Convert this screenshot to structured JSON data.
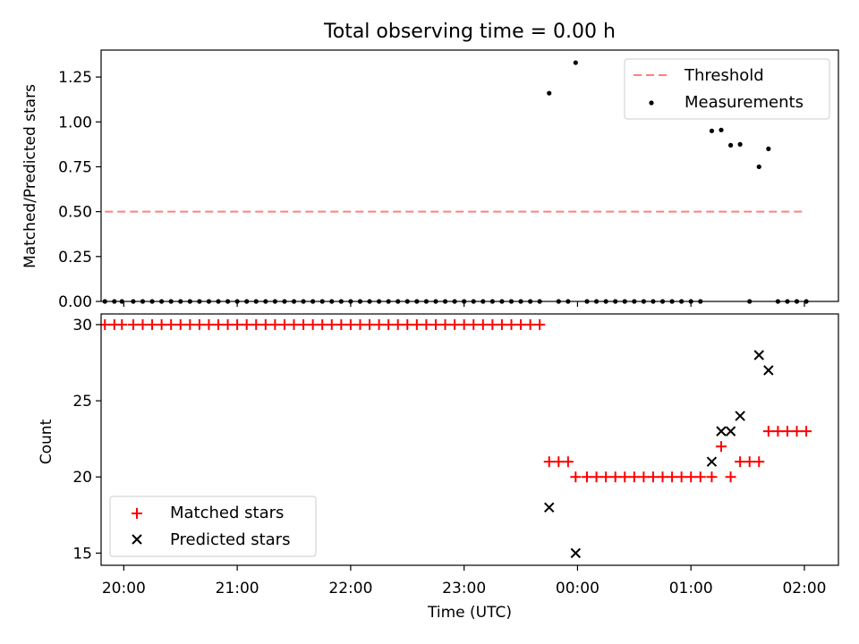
{
  "chart_data": [
    {
      "type": "scatter",
      "title": "Total observing time = 0.00 h",
      "ylabel": "Matched/Predicted stars",
      "xlabel": "",
      "ylim": [
        0,
        1.4
      ],
      "xlim": [
        "19:48",
        "02:18"
      ],
      "yticks": [
        0.0,
        0.25,
        0.5,
        0.75,
        1.0,
        1.25
      ],
      "ytick_labels": [
        "0.00",
        "0.25",
        "0.50",
        "0.75",
        "1.00",
        "1.25"
      ],
      "legend_position": "top-right",
      "threshold": {
        "name": "Threshold",
        "value": 0.5,
        "x_range": [
          "19:50",
          "02:01"
        ],
        "color": "#ff7f7f",
        "style": "dashed"
      },
      "measurements": {
        "name": "Measurements",
        "color": "#000000",
        "points": [
          [
            "19:50",
            0
          ],
          [
            "19:55",
            0
          ],
          [
            "19:59",
            0
          ],
          [
            "20:05",
            0
          ],
          [
            "20:10",
            0
          ],
          [
            "20:15",
            0
          ],
          [
            "20:20",
            0
          ],
          [
            "20:25",
            0
          ],
          [
            "20:30",
            0
          ],
          [
            "20:35",
            0
          ],
          [
            "20:40",
            0
          ],
          [
            "20:45",
            0
          ],
          [
            "20:50",
            0
          ],
          [
            "20:55",
            0
          ],
          [
            "21:00",
            0
          ],
          [
            "21:05",
            0
          ],
          [
            "21:10",
            0
          ],
          [
            "21:15",
            0
          ],
          [
            "21:20",
            0
          ],
          [
            "21:25",
            0
          ],
          [
            "21:30",
            0
          ],
          [
            "21:35",
            0
          ],
          [
            "21:40",
            0
          ],
          [
            "21:45",
            0
          ],
          [
            "21:50",
            0
          ],
          [
            "21:55",
            0
          ],
          [
            "22:00",
            0
          ],
          [
            "22:05",
            0
          ],
          [
            "22:10",
            0
          ],
          [
            "22:15",
            0
          ],
          [
            "22:20",
            0
          ],
          [
            "22:25",
            0
          ],
          [
            "22:30",
            0
          ],
          [
            "22:35",
            0
          ],
          [
            "22:40",
            0
          ],
          [
            "22:45",
            0
          ],
          [
            "22:50",
            0
          ],
          [
            "22:55",
            0
          ],
          [
            "23:00",
            0
          ],
          [
            "23:05",
            0
          ],
          [
            "23:10",
            0
          ],
          [
            "23:15",
            0
          ],
          [
            "23:20",
            0
          ],
          [
            "23:25",
            0
          ],
          [
            "23:30",
            0
          ],
          [
            "23:35",
            0
          ],
          [
            "23:40",
            0
          ],
          [
            "23:45",
            1.16
          ],
          [
            "23:50",
            0
          ],
          [
            "23:55",
            0
          ],
          [
            "23:59",
            1.33
          ],
          [
            "00:05",
            0
          ],
          [
            "00:10",
            0
          ],
          [
            "00:15",
            0
          ],
          [
            "00:20",
            0
          ],
          [
            "00:25",
            0
          ],
          [
            "00:30",
            0
          ],
          [
            "00:35",
            0
          ],
          [
            "00:40",
            0
          ],
          [
            "00:45",
            0
          ],
          [
            "00:50",
            0
          ],
          [
            "00:55",
            0
          ],
          [
            "01:00",
            0
          ],
          [
            "01:05",
            0
          ],
          [
            "01:11",
            0.95
          ],
          [
            "01:16",
            0.955
          ],
          [
            "01:21",
            0.87
          ],
          [
            "01:26",
            0.875
          ],
          [
            "01:31",
            0
          ],
          [
            "01:36",
            0.75
          ],
          [
            "01:41",
            0.85
          ],
          [
            "01:46",
            0
          ],
          [
            "01:51",
            0
          ],
          [
            "01:56",
            0
          ],
          [
            "02:01",
            0
          ]
        ]
      }
    },
    {
      "type": "scatter",
      "title": "",
      "xlabel": "Time (UTC)",
      "ylabel": "Count",
      "ylim": [
        14.2,
        30.7
      ],
      "xlim": [
        "19:48",
        "02:18"
      ],
      "yticks": [
        15,
        20,
        25,
        30
      ],
      "ytick_labels": [
        "15",
        "20",
        "25",
        "30"
      ],
      "xticks": [
        "20:00",
        "21:00",
        "22:00",
        "23:00",
        "00:00",
        "01:00",
        "02:00"
      ],
      "legend_position": "bottom-left",
      "series": [
        {
          "name": "Matched stars",
          "marker": "+",
          "color": "#ff0000",
          "points": [
            [
              "19:50",
              30
            ],
            [
              "19:55",
              30
            ],
            [
              "19:59",
              30
            ],
            [
              "20:05",
              30
            ],
            [
              "20:10",
              30
            ],
            [
              "20:15",
              30
            ],
            [
              "20:20",
              30
            ],
            [
              "20:25",
              30
            ],
            [
              "20:30",
              30
            ],
            [
              "20:35",
              30
            ],
            [
              "20:40",
              30
            ],
            [
              "20:45",
              30
            ],
            [
              "20:50",
              30
            ],
            [
              "20:55",
              30
            ],
            [
              "21:00",
              30
            ],
            [
              "21:05",
              30
            ],
            [
              "21:10",
              30
            ],
            [
              "21:15",
              30
            ],
            [
              "21:20",
              30
            ],
            [
              "21:25",
              30
            ],
            [
              "21:30",
              30
            ],
            [
              "21:35",
              30
            ],
            [
              "21:40",
              30
            ],
            [
              "21:45",
              30
            ],
            [
              "21:50",
              30
            ],
            [
              "21:55",
              30
            ],
            [
              "22:00",
              30
            ],
            [
              "22:05",
              30
            ],
            [
              "22:10",
              30
            ],
            [
              "22:15",
              30
            ],
            [
              "22:20",
              30
            ],
            [
              "22:25",
              30
            ],
            [
              "22:30",
              30
            ],
            [
              "22:35",
              30
            ],
            [
              "22:40",
              30
            ],
            [
              "22:45",
              30
            ],
            [
              "22:50",
              30
            ],
            [
              "22:55",
              30
            ],
            [
              "23:00",
              30
            ],
            [
              "23:05",
              30
            ],
            [
              "23:10",
              30
            ],
            [
              "23:15",
              30
            ],
            [
              "23:20",
              30
            ],
            [
              "23:25",
              30
            ],
            [
              "23:30",
              30
            ],
            [
              "23:35",
              30
            ],
            [
              "23:40",
              30
            ],
            [
              "23:45",
              21
            ],
            [
              "23:50",
              21
            ],
            [
              "23:55",
              21
            ],
            [
              "23:59",
              20
            ],
            [
              "00:05",
              20
            ],
            [
              "00:10",
              20
            ],
            [
              "00:15",
              20
            ],
            [
              "00:20",
              20
            ],
            [
              "00:25",
              20
            ],
            [
              "00:30",
              20
            ],
            [
              "00:35",
              20
            ],
            [
              "00:40",
              20
            ],
            [
              "00:45",
              20
            ],
            [
              "00:50",
              20
            ],
            [
              "00:55",
              20
            ],
            [
              "01:00",
              20
            ],
            [
              "01:05",
              20
            ],
            [
              "01:11",
              20
            ],
            [
              "01:16",
              22
            ],
            [
              "01:21",
              20
            ],
            [
              "01:26",
              21
            ],
            [
              "01:31",
              21
            ],
            [
              "01:36",
              21
            ],
            [
              "01:41",
              23
            ],
            [
              "01:46",
              23
            ],
            [
              "01:51",
              23
            ],
            [
              "01:56",
              23
            ],
            [
              "02:01",
              23
            ]
          ]
        },
        {
          "name": "Predicted stars",
          "marker": "x",
          "color": "#000000",
          "points": [
            [
              "23:45",
              18
            ],
            [
              "23:59",
              15
            ],
            [
              "01:11",
              21
            ],
            [
              "01:16",
              23
            ],
            [
              "01:21",
              23
            ],
            [
              "01:26",
              24
            ],
            [
              "01:36",
              28
            ],
            [
              "01:41",
              27
            ]
          ]
        }
      ]
    }
  ]
}
